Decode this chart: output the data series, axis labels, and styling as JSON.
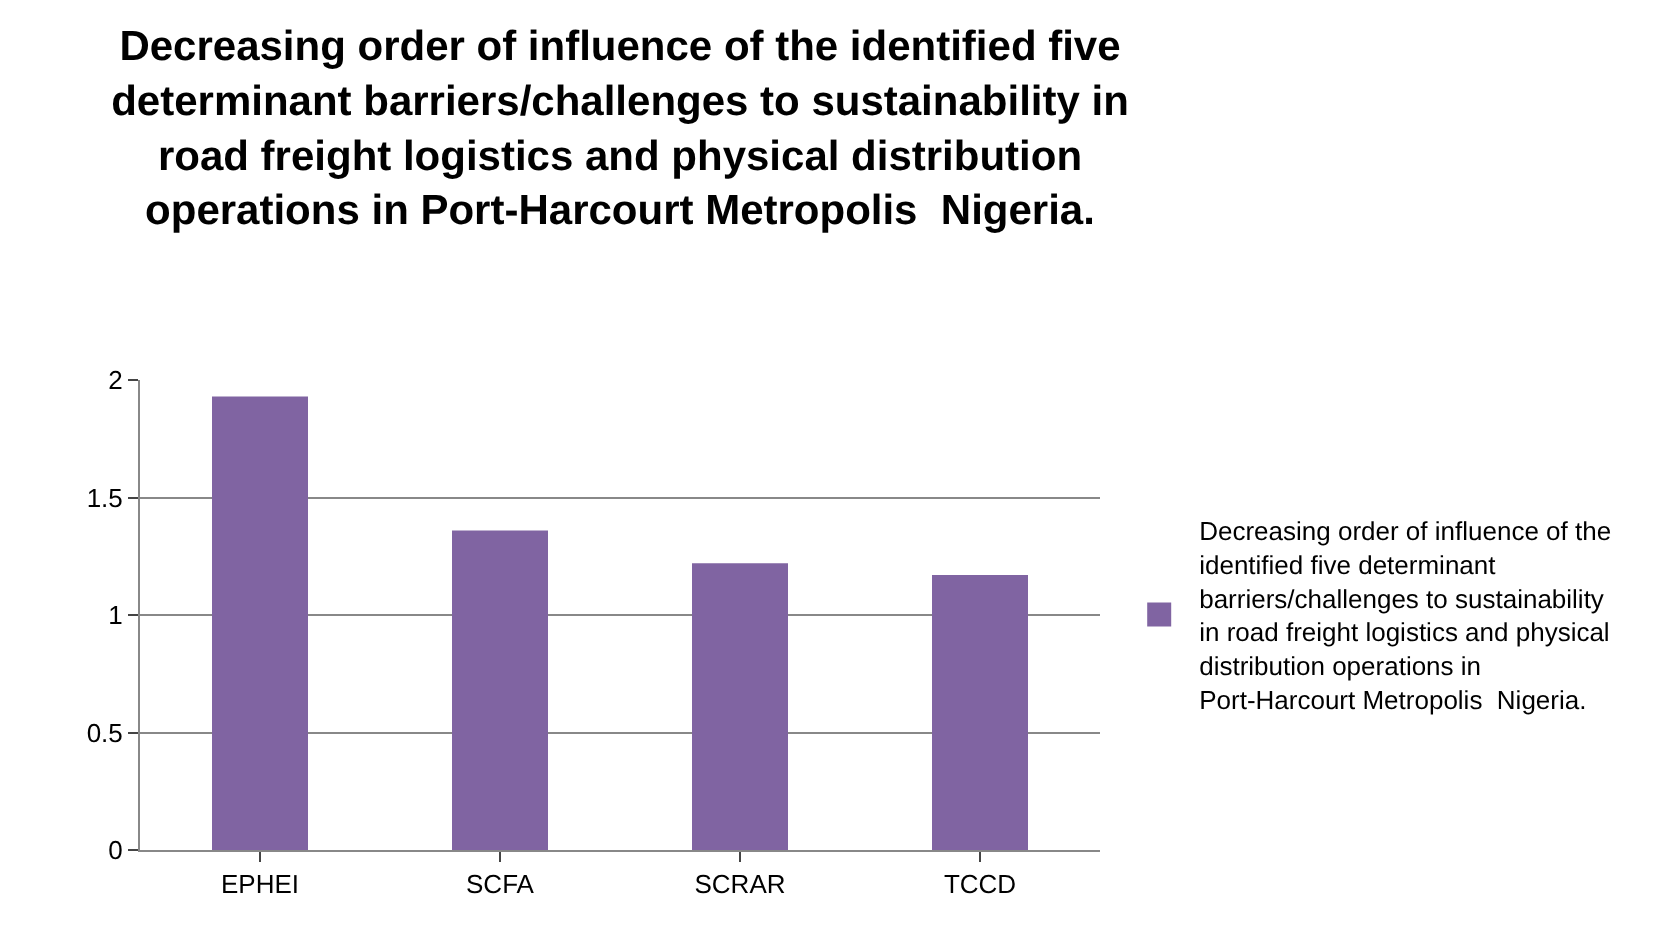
{
  "chart_data": {
    "type": "bar",
    "title": "Decreasing order of influence of the identified five determinant barriers/challenges to sustainability in road freight logistics and physical distribution operations in Port-Harcourt Metropolis  Nigeria.",
    "categories": [
      "EPHEI",
      "SCFA",
      "SCRAR",
      "TCCD"
    ],
    "series": [
      {
        "name": "Decreasing order of influence of the identified five determinant barriers/challenges to sustainability in road freight logistics and physical distribution operations in Port-Harcourt Metropolis  Nigeria.",
        "color": "#8064a2",
        "values": [
          1.93,
          1.36,
          1.22,
          1.17
        ]
      }
    ],
    "ylim": [
      0,
      2
    ],
    "yticks": [
      0,
      0.5,
      1,
      1.5,
      2
    ],
    "grid": "y",
    "legend": "right"
  }
}
